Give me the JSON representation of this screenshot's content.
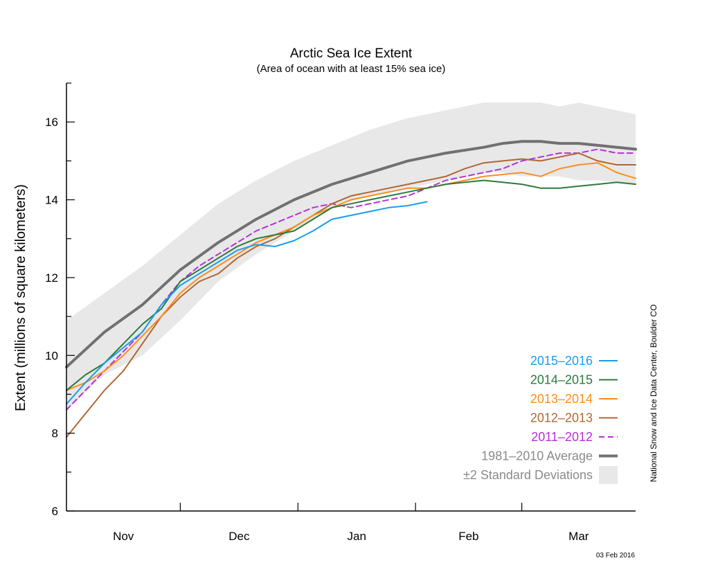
{
  "chart_data": {
    "type": "line",
    "title": "Arctic Sea Ice Extent",
    "subtitle": "(Area of ocean with at least 15% sea ice)",
    "ylabel": "Extent (millions of square kilometers)",
    "xlabel": "",
    "ylim": [
      6,
      17
    ],
    "xlim": [
      0,
      150
    ],
    "yticks": [
      6,
      8,
      10,
      12,
      14,
      16
    ],
    "month_ticks": [
      30,
      61,
      92,
      120
    ],
    "months": [
      {
        "label": "Nov",
        "x": 15
      },
      {
        "label": "Dec",
        "x": 45.5
      },
      {
        "label": "Jan",
        "x": 76.5
      },
      {
        "label": "Feb",
        "x": 106
      },
      {
        "label": "Mar",
        "x": 135
      }
    ],
    "credit": "National Snow and Ice Data Center, Boulder CO",
    "date_stamp": "03 Feb 2016",
    "legend_position": "bottom-right",
    "std_band": {
      "name": "±2 Standard Deviations",
      "color": "#e8e8e8",
      "x": [
        0,
        10,
        20,
        30,
        40,
        50,
        60,
        70,
        80,
        90,
        100,
        110,
        115,
        120,
        125,
        130,
        135,
        140,
        150
      ],
      "upper": [
        10.9,
        11.6,
        12.3,
        13.1,
        13.9,
        14.5,
        15.0,
        15.4,
        15.8,
        16.1,
        16.3,
        16.5,
        16.5,
        16.5,
        16.5,
        16.4,
        16.5,
        16.4,
        16.2
      ],
      "lower": [
        8.6,
        9.5,
        10.0,
        10.9,
        11.9,
        12.6,
        13.2,
        13.8,
        14.1,
        14.3,
        14.5,
        14.7,
        14.7,
        14.6,
        14.6,
        14.6,
        14.5,
        14.5,
        14.4
      ]
    },
    "series": [
      {
        "name": "1981–2010 Average",
        "color": "#707070",
        "width": 4,
        "dash": "",
        "x": [
          0,
          10,
          20,
          30,
          40,
          50,
          60,
          70,
          80,
          90,
          100,
          110,
          115,
          120,
          125,
          130,
          135,
          140,
          150
        ],
        "values": [
          9.7,
          10.6,
          11.3,
          12.2,
          12.9,
          13.5,
          14.0,
          14.4,
          14.7,
          15.0,
          15.2,
          15.35,
          15.45,
          15.5,
          15.5,
          15.45,
          15.45,
          15.4,
          15.3
        ]
      },
      {
        "name": "2011–2012",
        "color": "#b431d6",
        "width": 2,
        "dash": "8,5",
        "x": [
          0,
          5,
          10,
          15,
          20,
          25,
          30,
          35,
          40,
          45,
          50,
          55,
          60,
          65,
          70,
          75,
          80,
          85,
          90,
          95,
          100,
          105,
          110,
          115,
          120,
          125,
          130,
          135,
          140,
          145,
          150
        ],
        "values": [
          8.6,
          9.1,
          9.6,
          10.1,
          10.6,
          11.3,
          11.9,
          12.3,
          12.6,
          12.9,
          13.2,
          13.4,
          13.6,
          13.8,
          13.9,
          13.8,
          13.9,
          14.0,
          14.1,
          14.3,
          14.5,
          14.6,
          14.7,
          14.8,
          15.0,
          15.1,
          15.2,
          15.2,
          15.3,
          15.2,
          15.2
        ]
      },
      {
        "name": "2012–2013",
        "color": "#b06633",
        "width": 2,
        "dash": "",
        "x": [
          0,
          5,
          10,
          15,
          20,
          25,
          30,
          35,
          40,
          45,
          50,
          55,
          60,
          65,
          70,
          75,
          80,
          85,
          90,
          95,
          100,
          105,
          110,
          115,
          120,
          125,
          130,
          135,
          140,
          145,
          150
        ],
        "values": [
          7.9,
          8.5,
          9.1,
          9.6,
          10.3,
          11.0,
          11.5,
          11.9,
          12.1,
          12.5,
          12.8,
          13.0,
          13.3,
          13.6,
          13.9,
          14.1,
          14.2,
          14.3,
          14.4,
          14.5,
          14.6,
          14.8,
          14.95,
          15.0,
          15.05,
          15.0,
          15.1,
          15.2,
          15.0,
          14.9,
          14.9
        ]
      },
      {
        "name": "2013–2014",
        "color": "#ff8c1a",
        "width": 2,
        "dash": "",
        "x": [
          0,
          5,
          10,
          15,
          20,
          25,
          30,
          35,
          40,
          45,
          50,
          55,
          60,
          65,
          70,
          75,
          80,
          85,
          90,
          95,
          100,
          105,
          110,
          115,
          120,
          125,
          130,
          135,
          140,
          145,
          150
        ],
        "values": [
          9.1,
          9.3,
          9.6,
          10.0,
          10.5,
          11.0,
          11.6,
          12.0,
          12.3,
          12.6,
          12.9,
          13.1,
          13.3,
          13.6,
          13.8,
          14.0,
          14.1,
          14.2,
          14.3,
          14.3,
          14.4,
          14.5,
          14.6,
          14.65,
          14.7,
          14.6,
          14.8,
          14.9,
          14.95,
          14.7,
          14.55
        ]
      },
      {
        "name": "2014–2015",
        "color": "#2a7a3b",
        "width": 2,
        "dash": "",
        "x": [
          0,
          5,
          10,
          15,
          20,
          25,
          30,
          35,
          40,
          45,
          50,
          55,
          60,
          65,
          70,
          75,
          80,
          85,
          90,
          95,
          100,
          105,
          110,
          115,
          120,
          125,
          130,
          135,
          140,
          145,
          150
        ],
        "values": [
          9.1,
          9.5,
          9.8,
          10.3,
          10.8,
          11.2,
          11.9,
          12.2,
          12.5,
          12.8,
          13.0,
          13.1,
          13.2,
          13.5,
          13.8,
          13.9,
          14.0,
          14.1,
          14.2,
          14.3,
          14.4,
          14.45,
          14.5,
          14.45,
          14.4,
          14.3,
          14.3,
          14.35,
          14.4,
          14.45,
          14.4
        ]
      },
      {
        "name": "2015–2016",
        "color": "#1a9cf0",
        "width": 2,
        "dash": "",
        "x": [
          0,
          5,
          10,
          15,
          20,
          25,
          30,
          35,
          40,
          45,
          50,
          55,
          60,
          65,
          70,
          75,
          80,
          85,
          90,
          95
        ],
        "values": [
          8.75,
          9.3,
          9.8,
          10.2,
          10.6,
          11.3,
          11.8,
          12.1,
          12.4,
          12.7,
          12.85,
          12.8,
          12.95,
          13.2,
          13.5,
          13.6,
          13.7,
          13.8,
          13.85,
          13.95
        ]
      }
    ]
  }
}
